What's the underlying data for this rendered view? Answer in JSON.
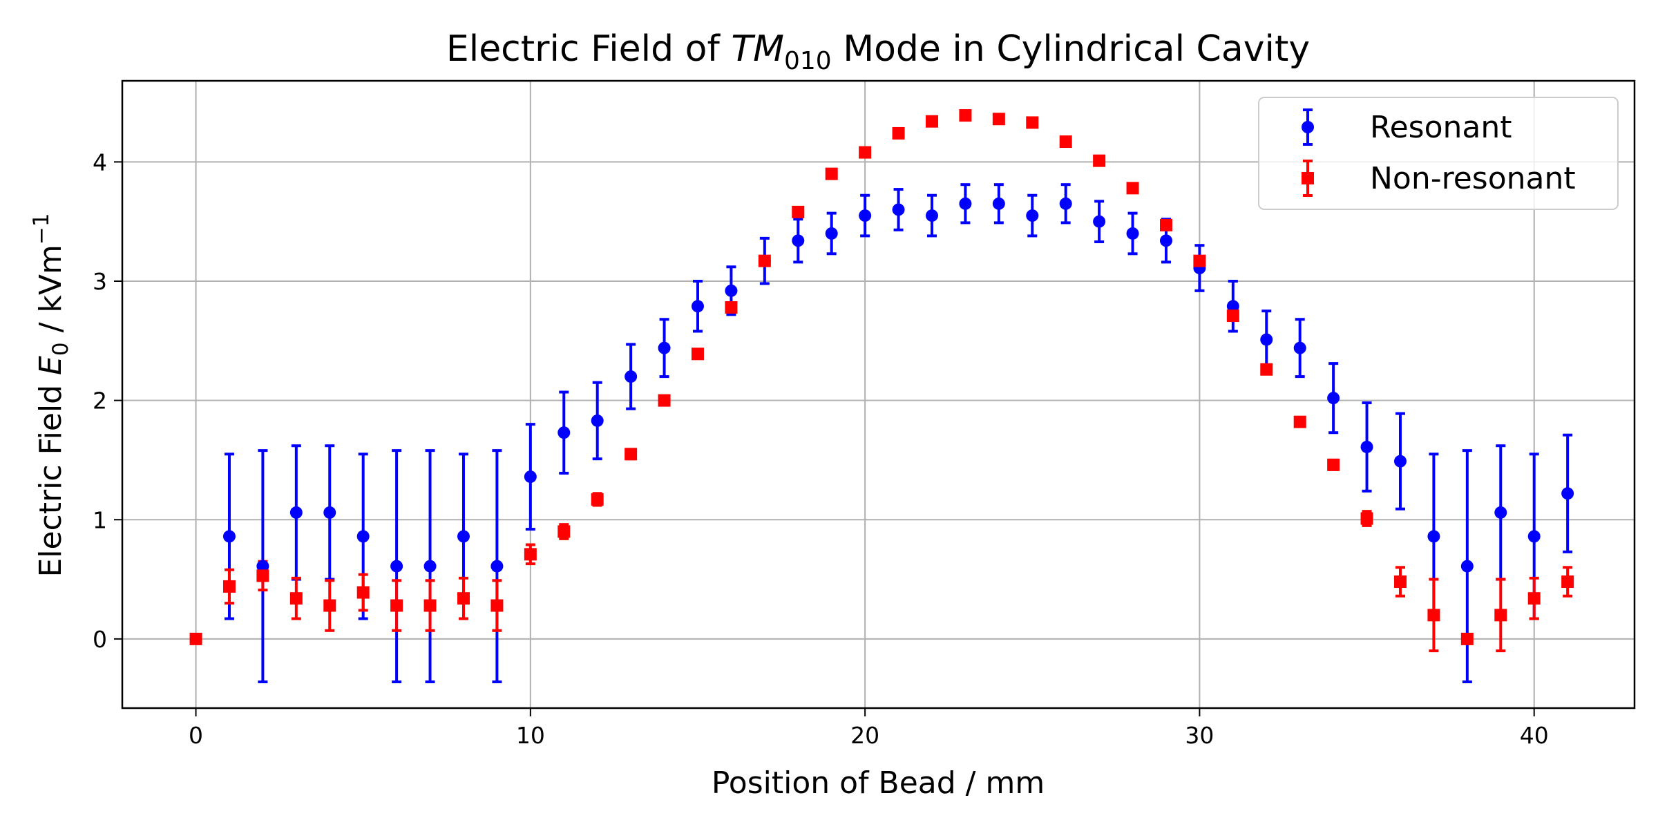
{
  "chart_data": {
    "type": "scatter",
    "title_prefix": "Electric Field of ",
    "title_math_base": "TM",
    "title_math_sub": "010",
    "title_suffix": " Mode in Cylindrical Cavity",
    "xlabel": "Position of Bead / mm",
    "ylabel_prefix": "Electric Field ",
    "ylabel_math_base": "E",
    "ylabel_math_sub": "0",
    "ylabel_unit": " / kVm",
    "ylabel_unit_sup": "−1",
    "xlim": [
      -2.2,
      43.0
    ],
    "ylim": [
      -0.58,
      4.68
    ],
    "xticks": [
      0,
      10,
      20,
      30,
      40
    ],
    "yticks": [
      0,
      1,
      2,
      3,
      4
    ],
    "grid": true,
    "legend_position": "upper right",
    "series": [
      {
        "name": "Resonant",
        "color": "#0000ff",
        "marker": "circle",
        "x": [
          1,
          2,
          3,
          4,
          5,
          6,
          7,
          8,
          9,
          10,
          11,
          12,
          13,
          14,
          15,
          16,
          17,
          18,
          19,
          20,
          21,
          22,
          23,
          24,
          25,
          26,
          27,
          28,
          29,
          30,
          31,
          32,
          33,
          34,
          35,
          36,
          37,
          38,
          39,
          40,
          41
        ],
        "y": [
          0.86,
          0.61,
          1.06,
          1.06,
          0.86,
          0.61,
          0.61,
          0.86,
          0.61,
          1.36,
          1.73,
          1.83,
          2.2,
          2.44,
          2.79,
          2.92,
          3.17,
          3.34,
          3.4,
          3.55,
          3.6,
          3.55,
          3.65,
          3.65,
          3.55,
          3.65,
          3.5,
          3.4,
          3.34,
          3.11,
          2.79,
          2.51,
          2.44,
          2.02,
          1.61,
          1.49,
          0.86,
          0.61,
          1.06,
          0.86,
          1.22
        ],
        "yerr": [
          0.69,
          0.97,
          0.56,
          0.56,
          0.69,
          0.97,
          0.97,
          0.69,
          0.97,
          0.44,
          0.34,
          0.32,
          0.27,
          0.24,
          0.21,
          0.2,
          0.19,
          0.18,
          0.17,
          0.17,
          0.17,
          0.17,
          0.16,
          0.16,
          0.17,
          0.16,
          0.17,
          0.17,
          0.18,
          0.19,
          0.21,
          0.24,
          0.24,
          0.29,
          0.37,
          0.4,
          0.69,
          0.97,
          0.56,
          0.69,
          0.49
        ]
      },
      {
        "name": "Non-resonant",
        "color": "#ff0000",
        "marker": "square",
        "x": [
          0,
          1,
          2,
          3,
          4,
          5,
          6,
          7,
          8,
          9,
          10,
          11,
          12,
          13,
          14,
          15,
          16,
          17,
          18,
          19,
          20,
          21,
          22,
          23,
          24,
          25,
          26,
          27,
          28,
          29,
          30,
          31,
          32,
          33,
          34,
          35,
          36,
          37,
          38,
          39,
          40,
          41
        ],
        "y": [
          0,
          0.44,
          0.53,
          0.34,
          0.28,
          0.39,
          0.28,
          0.28,
          0.34,
          0.28,
          0.71,
          0.9,
          1.17,
          1.55,
          2.0,
          2.39,
          2.78,
          3.17,
          3.58,
          3.9,
          4.08,
          4.24,
          4.34,
          4.39,
          4.36,
          4.33,
          4.17,
          4.01,
          3.78,
          3.47,
          3.17,
          2.71,
          2.26,
          1.82,
          1.46,
          1.01,
          0.48,
          0.2,
          0,
          0.2,
          0.34,
          0.48
        ],
        "yerr": [
          0,
          0.14,
          0.12,
          0.17,
          0.21,
          0.15,
          0.21,
          0.21,
          0.17,
          0.21,
          0.08,
          0.06,
          0.05,
          0.04,
          0.03,
          0.02,
          0.02,
          0.02,
          0.01,
          0.01,
          0.01,
          0.01,
          0.01,
          0.01,
          0.01,
          0.01,
          0.01,
          0.01,
          0.01,
          0.02,
          0.02,
          0.02,
          0.03,
          0.03,
          0.04,
          0.06,
          0.12,
          0.3,
          0,
          0.3,
          0.17,
          0.12
        ]
      }
    ]
  }
}
